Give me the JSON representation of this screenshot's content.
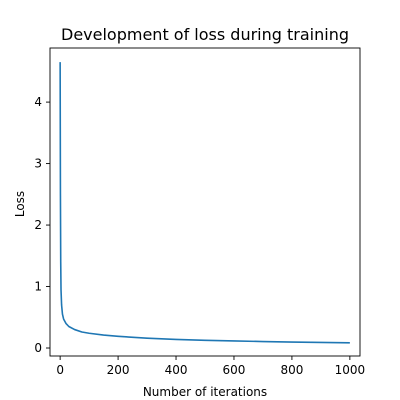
{
  "chart_data": {
    "type": "line",
    "title": "Development of loss during training",
    "xlabel": "Number of iterations",
    "ylabel": "Loss",
    "xlim": [
      -35,
      1035
    ],
    "ylim": [
      -0.13,
      4.88
    ],
    "xticks": [
      0,
      200,
      400,
      600,
      800,
      1000
    ],
    "yticks": [
      0,
      1,
      2,
      3,
      4
    ],
    "grid": false,
    "legend": "none",
    "series": [
      {
        "color": "#1f77b4",
        "x": [
          0,
          1,
          2,
          3,
          5,
          8,
          12,
          20,
          30,
          50,
          75,
          100,
          150,
          200,
          300,
          400,
          500,
          600,
          700,
          800,
          900,
          1000
        ],
        "y": [
          4.65,
          2.5,
          1.4,
          0.95,
          0.7,
          0.55,
          0.47,
          0.4,
          0.35,
          0.3,
          0.26,
          0.24,
          0.21,
          0.19,
          0.16,
          0.14,
          0.125,
          0.115,
          0.105,
          0.097,
          0.09,
          0.085
        ]
      }
    ]
  }
}
